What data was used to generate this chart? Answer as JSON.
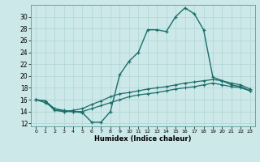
{
  "xlabel": "Humidex (Indice chaleur)",
  "ylabel": "",
  "bg_color": "#cce8e8",
  "line_color": "#1a6e6a",
  "grid_color": "#b0d4d4",
  "xlim": [
    -0.5,
    23.5
  ],
  "ylim": [
    11.5,
    32.0
  ],
  "yticks": [
    12,
    14,
    16,
    18,
    20,
    22,
    24,
    26,
    28,
    30
  ],
  "xticks": [
    0,
    1,
    2,
    3,
    4,
    5,
    6,
    7,
    8,
    9,
    10,
    11,
    12,
    13,
    14,
    15,
    16,
    17,
    18,
    19,
    20,
    21,
    22,
    23
  ],
  "series1": {
    "x": [
      0,
      1,
      2,
      3,
      4,
      5,
      6,
      7,
      8,
      9,
      10,
      11,
      12,
      13,
      14,
      15,
      16,
      17,
      18,
      19,
      20,
      21,
      22,
      23
    ],
    "y": [
      16.0,
      15.8,
      14.2,
      14.0,
      14.0,
      13.8,
      12.2,
      12.2,
      14.0,
      20.2,
      22.5,
      24.0,
      27.8,
      27.8,
      27.5,
      30.0,
      31.5,
      30.5,
      27.8,
      19.8,
      19.2,
      18.5,
      18.2,
      17.5
    ]
  },
  "series2": {
    "x": [
      0,
      1,
      2,
      3,
      4,
      5,
      6,
      7,
      8,
      9,
      10,
      11,
      12,
      13,
      14,
      15,
      16,
      17,
      18,
      19,
      20,
      21,
      22,
      23
    ],
    "y": [
      16.0,
      15.8,
      14.5,
      14.0,
      14.2,
      14.5,
      15.2,
      15.8,
      16.5,
      17.0,
      17.2,
      17.5,
      17.8,
      18.0,
      18.2,
      18.5,
      18.8,
      19.0,
      19.2,
      19.4,
      19.2,
      18.8,
      18.5,
      17.8
    ]
  },
  "series3": {
    "x": [
      0,
      1,
      2,
      3,
      4,
      5,
      6,
      7,
      8,
      9,
      10,
      11,
      12,
      13,
      14,
      15,
      16,
      17,
      18,
      19,
      20,
      21,
      22,
      23
    ],
    "y": [
      16.0,
      15.5,
      14.5,
      14.2,
      14.0,
      14.0,
      14.5,
      15.0,
      15.5,
      16.0,
      16.5,
      16.8,
      17.0,
      17.2,
      17.5,
      17.8,
      18.0,
      18.2,
      18.5,
      18.8,
      18.5,
      18.2,
      18.0,
      17.5
    ]
  }
}
